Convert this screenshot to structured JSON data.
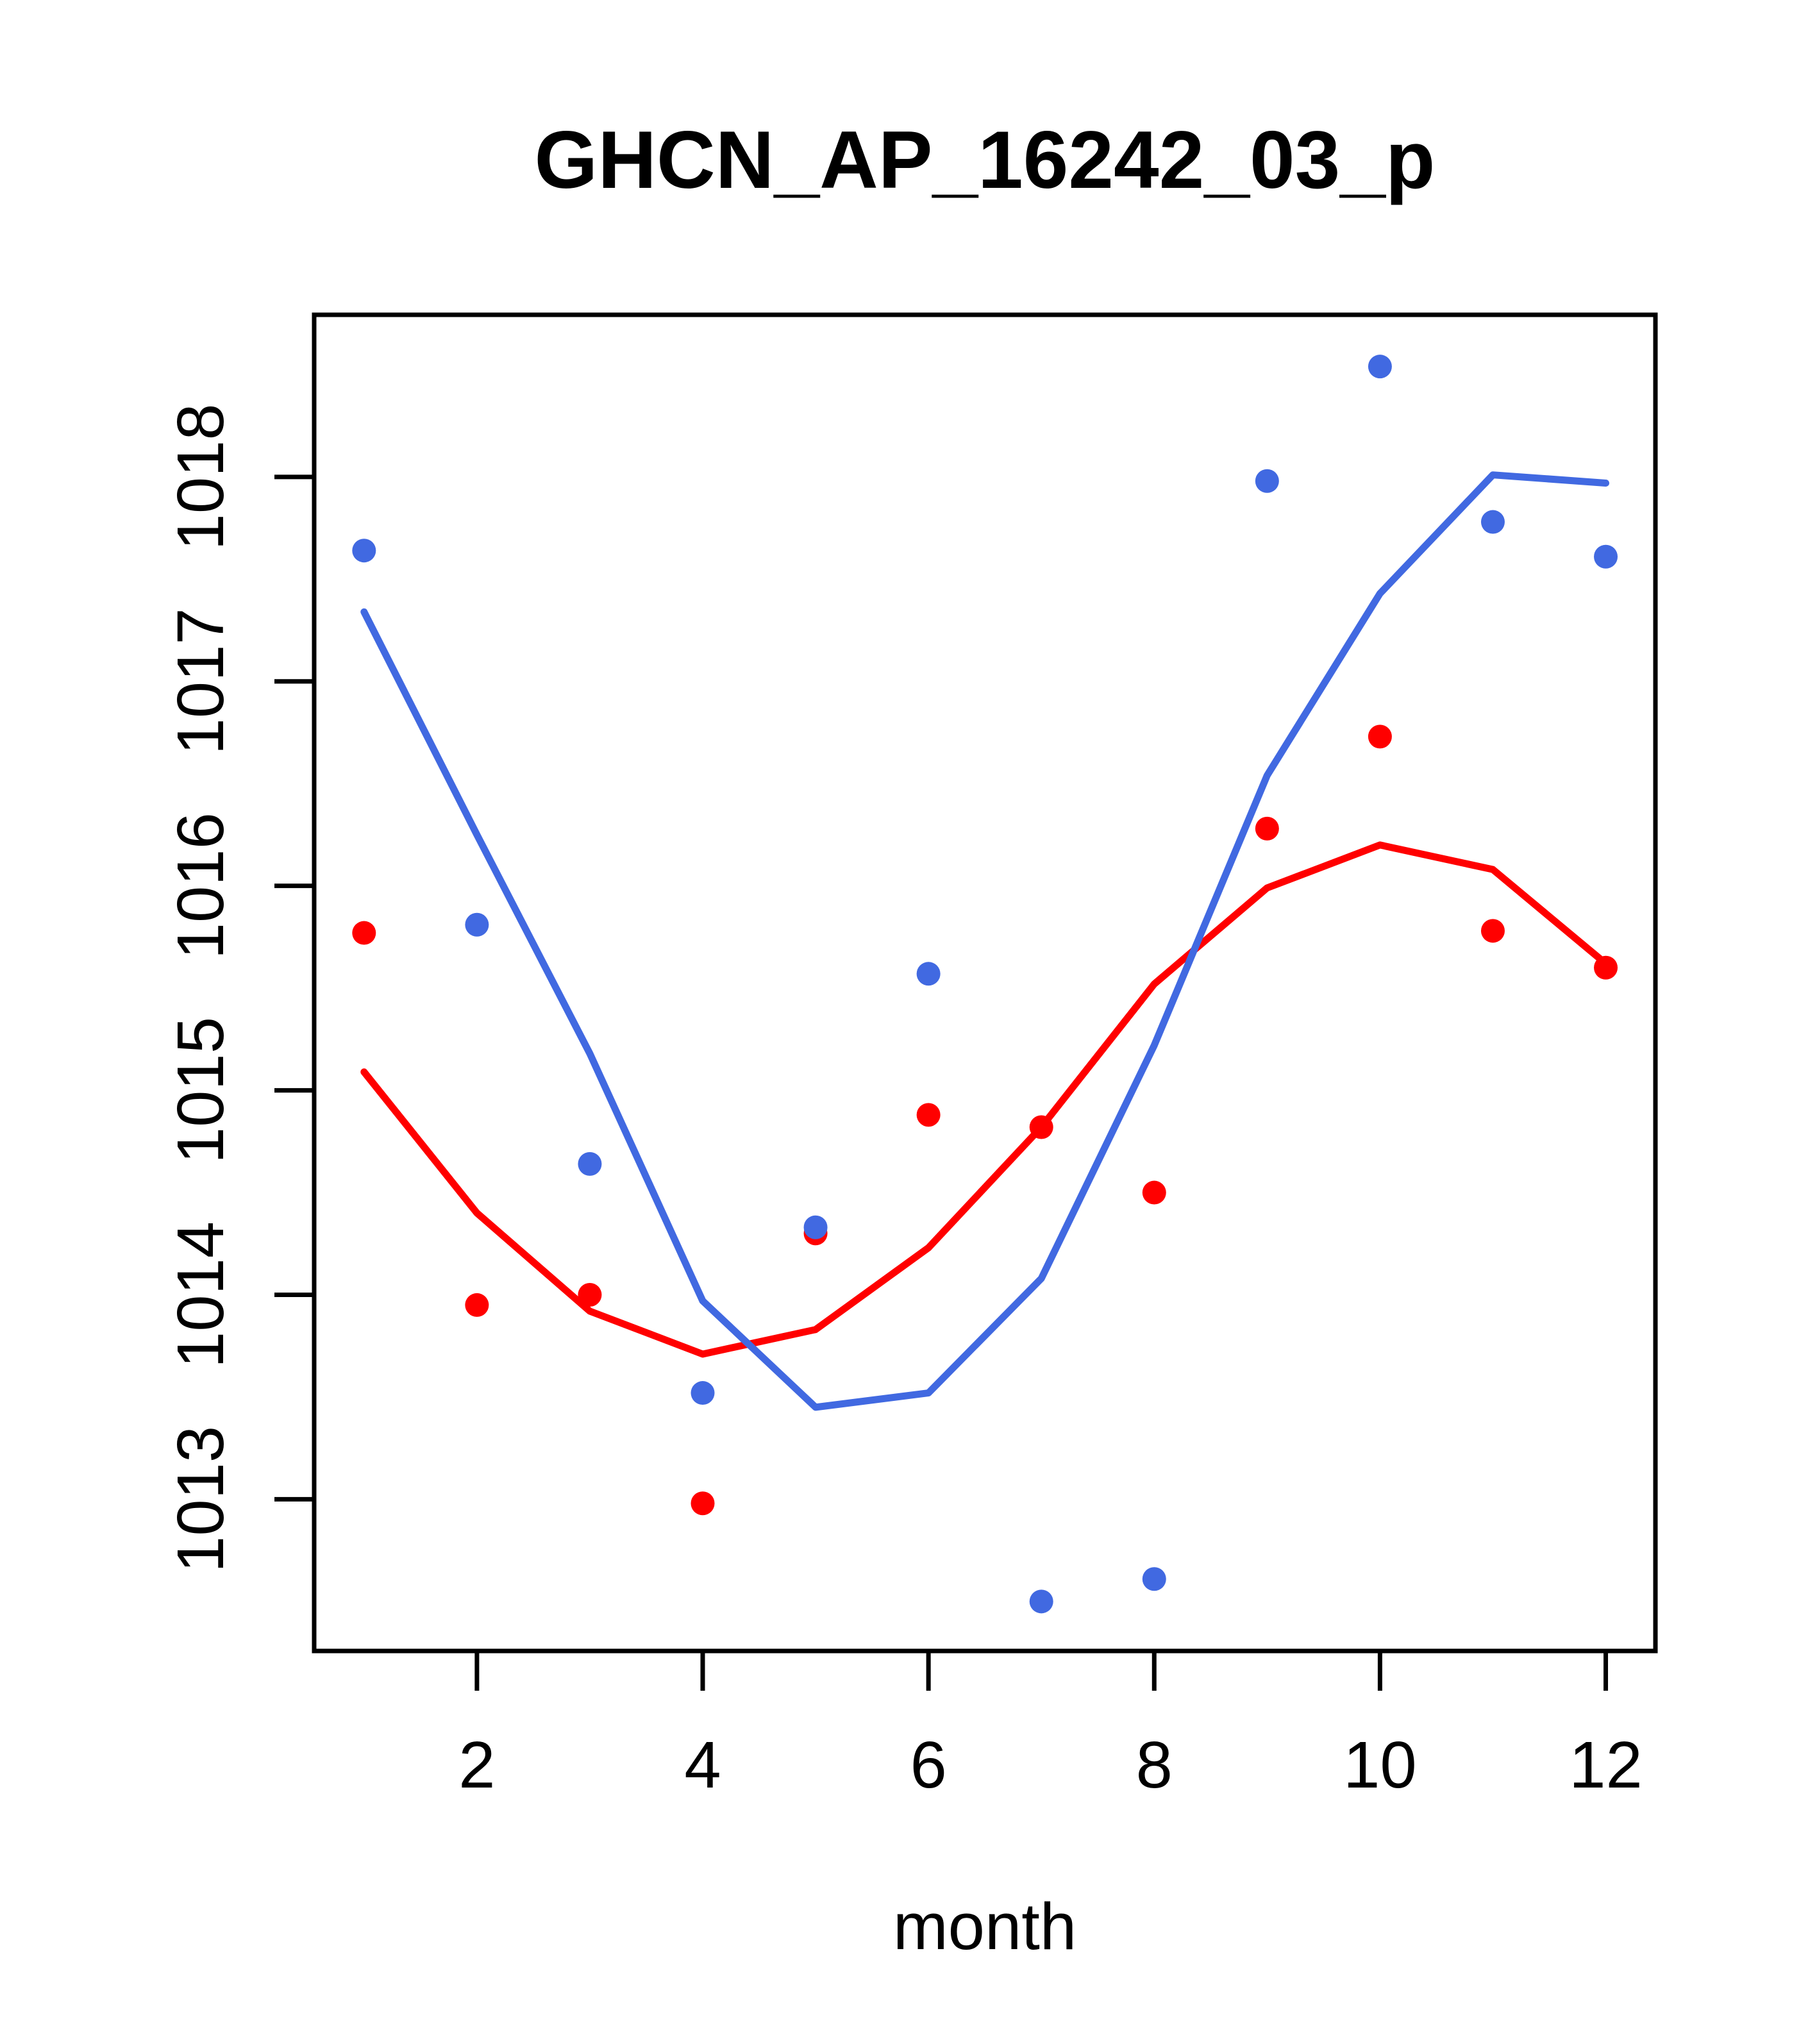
{
  "figure": {
    "background": "#ffffff",
    "axis_color": "#000000"
  },
  "chart_data": {
    "type": "scatter",
    "title": "GHCN_AP_16242_03_p",
    "xlabel": "month",
    "ylabel": "",
    "x": [
      1,
      2,
      3,
      4,
      5,
      6,
      7,
      8,
      9,
      10,
      11,
      12
    ],
    "x_ticks": [
      2,
      4,
      6,
      8,
      10,
      12
    ],
    "y_ticks": [
      1013,
      1014,
      1015,
      1016,
      1017,
      1018
    ],
    "xlim": [
      0.558,
      12.44
    ],
    "ylim": [
      1012.258,
      1018.793
    ],
    "grid": "off",
    "legend_position": "none",
    "series": [
      {
        "name": "red-smooth-line",
        "kind": "line",
        "color": "#FF0000",
        "values": [
          1015.09,
          1014.4,
          1013.92,
          1013.71,
          1013.83,
          1014.23,
          1014.82,
          1015.52,
          1015.99,
          1016.2,
          1016.08,
          1015.62
        ]
      },
      {
        "name": "blue-smooth-line",
        "kind": "line",
        "color": "#4169E1",
        "values": [
          1017.34,
          1016.25,
          1015.18,
          1013.97,
          1013.45,
          1013.52,
          1014.08,
          1015.22,
          1016.54,
          1017.43,
          1018.01,
          1017.97
        ]
      },
      {
        "name": "red-points",
        "kind": "points",
        "color": "#FF0000",
        "values": [
          1015.77,
          1013.95,
          1014.0,
          1012.98,
          1014.3,
          1014.88,
          1014.82,
          1014.5,
          1016.28,
          1016.73,
          1015.78,
          1015.6
        ]
      },
      {
        "name": "blue-points",
        "kind": "points",
        "color": "#4169E1",
        "values": [
          1017.64,
          1015.81,
          1014.64,
          1013.52,
          1014.33,
          1015.57,
          1012.5,
          1012.61,
          1017.98,
          1018.54,
          1017.78,
          1017.61
        ]
      }
    ]
  }
}
